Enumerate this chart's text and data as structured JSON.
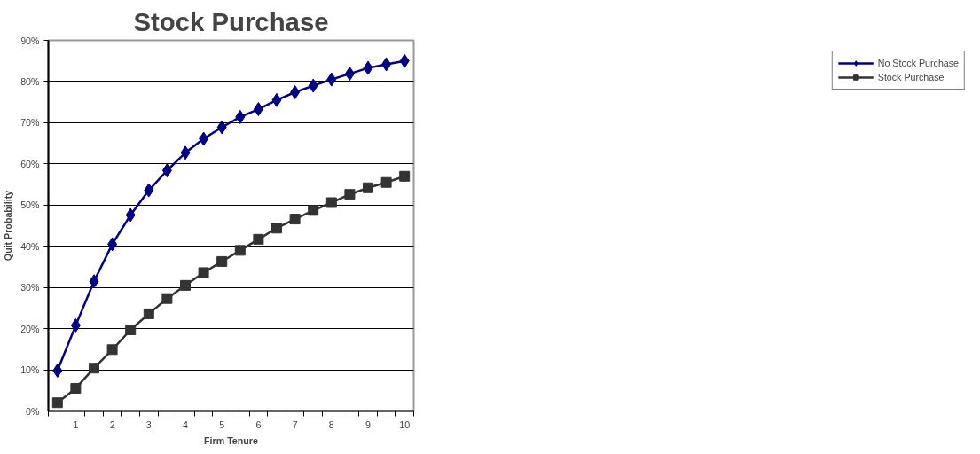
{
  "chart_data": {
    "type": "line",
    "title": "Stock Purchase",
    "xlabel": "Firm Tenure",
    "ylabel": "Quit Probability",
    "categories": [
      null,
      "1",
      null,
      "2",
      null,
      "3",
      null,
      "4",
      null,
      "5",
      null,
      "6",
      null,
      "7",
      null,
      "8",
      null,
      "9",
      null,
      "10"
    ],
    "series": [
      {
        "name": "No Stock Purchase",
        "color": "#000080",
        "marker": "diamond",
        "values": [
          9.8,
          20.8,
          31.5,
          40.5,
          47.6,
          53.6,
          58.4,
          62.7,
          66.1,
          68.9,
          71.4,
          73.3,
          75.5,
          77.4,
          79.0,
          80.5,
          81.9,
          83.3,
          84.2,
          85.0
        ]
      },
      {
        "name": "Stock Purchase",
        "color": "#333333",
        "marker": "square",
        "values": [
          2,
          5.5,
          10.4,
          14.9,
          19.7,
          23.6,
          27.3,
          30.5,
          33.6,
          36.3,
          39.0,
          41.7,
          44.4,
          46.6,
          48.7,
          50.6,
          52.6,
          54.2,
          55.5,
          57.0
        ]
      }
    ],
    "ylim": [
      0,
      90
    ],
    "yticks": [
      {
        "value": 0,
        "label": "0%"
      },
      {
        "value": 10,
        "label": "10%"
      },
      {
        "value": 20,
        "label": "20%"
      },
      {
        "value": 30,
        "label": "30%"
      },
      {
        "value": 40,
        "label": "40%"
      },
      {
        "value": 50,
        "label": "50%"
      },
      {
        "value": 60,
        "label": "60%"
      },
      {
        "value": 70,
        "label": "70%"
      },
      {
        "value": 80,
        "label": "80%"
      },
      {
        "value": 90,
        "label": "90%"
      }
    ],
    "grid": "y",
    "legend": "right",
    "line_style": "solid"
  }
}
